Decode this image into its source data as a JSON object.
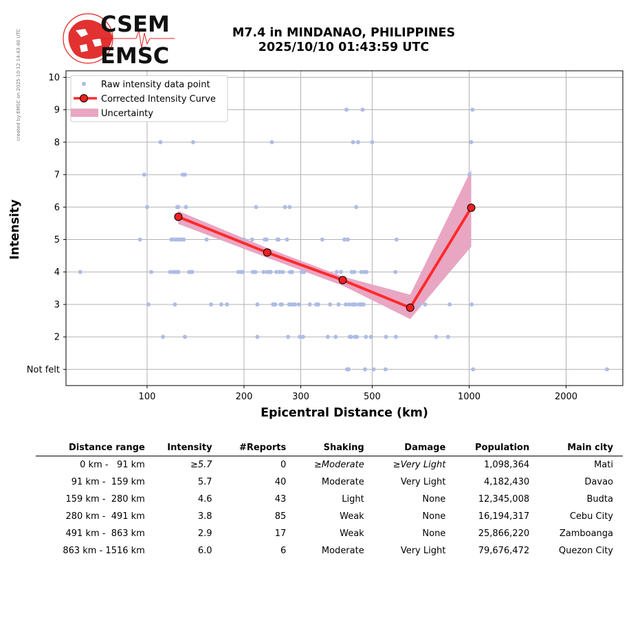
{
  "credit": "created by EMSC on 2025-10-12 14:43:40 UTC",
  "logo": {
    "line1": "CSEM",
    "line2": "EMSC"
  },
  "title": {
    "line1": "M7.4 in MINDANAO, PHILIPPINES",
    "line2": "2025/10/10 01:43:59 UTC"
  },
  "colors": {
    "raw": "#aebbe6",
    "curve": "#ff2a2a",
    "marker": "#ee2020",
    "uncertainty": "#e8a6c3",
    "logo_red": "#e02020"
  },
  "chart_data": {
    "type": "scatter",
    "xlabel": "Epicentral Distance (km)",
    "ylabel": "Intensity",
    "xscale": "log",
    "xlim": [
      56,
      3000
    ],
    "ylim": [
      0.5,
      10.2
    ],
    "xticks": [
      {
        "v": 100,
        "label": "100"
      },
      {
        "v": 200,
        "label": "200"
      },
      {
        "v": 300,
        "label": "300"
      },
      {
        "v": 500,
        "label": "500"
      },
      {
        "v": 1000,
        "label": "1000"
      },
      {
        "v": 2000,
        "label": "2000"
      }
    ],
    "yticks": [
      {
        "v": 1,
        "label": "Not felt"
      },
      {
        "v": 2,
        "label": "2"
      },
      {
        "v": 3,
        "label": "3"
      },
      {
        "v": 4,
        "label": "4"
      },
      {
        "v": 5,
        "label": "5"
      },
      {
        "v": 6,
        "label": "6"
      },
      {
        "v": 7,
        "label": "7"
      },
      {
        "v": 8,
        "label": "8"
      },
      {
        "v": 9,
        "label": "9"
      },
      {
        "v": 10,
        "label": "10"
      }
    ],
    "grid": true,
    "legend_position": "top-left",
    "legend": [
      "Raw intensity data point",
      "Corrected Intensity Curve",
      "Uncertainty"
    ],
    "raw_points": [
      [
        62,
        4
      ],
      [
        95,
        5
      ],
      [
        98,
        7
      ],
      [
        100,
        6
      ],
      [
        101,
        3
      ],
      [
        103,
        4
      ],
      [
        110,
        8
      ],
      [
        112,
        2
      ],
      [
        118,
        4
      ],
      [
        119,
        5
      ],
      [
        120,
        5
      ],
      [
        121,
        4
      ],
      [
        122,
        5
      ],
      [
        122,
        3
      ],
      [
        123,
        4
      ],
      [
        124,
        5
      ],
      [
        124,
        6
      ],
      [
        125,
        6
      ],
      [
        125,
        4
      ],
      [
        126,
        5
      ],
      [
        127,
        5
      ],
      [
        128,
        5
      ],
      [
        129,
        7
      ],
      [
        130,
        5
      ],
      [
        131,
        7
      ],
      [
        131,
        2
      ],
      [
        132,
        6
      ],
      [
        135,
        4
      ],
      [
        137,
        4
      ],
      [
        138,
        4
      ],
      [
        139,
        8
      ],
      [
        153,
        5
      ],
      [
        158,
        3
      ],
      [
        170,
        3
      ],
      [
        177,
        3
      ],
      [
        192,
        4
      ],
      [
        196,
        4
      ],
      [
        198,
        4
      ],
      [
        200,
        5
      ],
      [
        212,
        5
      ],
      [
        213,
        4
      ],
      [
        217,
        4
      ],
      [
        218,
        6
      ],
      [
        220,
        3
      ],
      [
        220,
        2
      ],
      [
        230,
        4
      ],
      [
        232,
        5
      ],
      [
        235,
        5
      ],
      [
        236,
        4
      ],
      [
        240,
        4
      ],
      [
        242,
        4
      ],
      [
        244,
        8
      ],
      [
        246,
        3
      ],
      [
        248,
        3
      ],
      [
        250,
        3
      ],
      [
        252,
        4
      ],
      [
        254,
        5
      ],
      [
        256,
        5
      ],
      [
        258,
        4
      ],
      [
        260,
        3
      ],
      [
        262,
        3
      ],
      [
        264,
        4
      ],
      [
        268,
        6
      ],
      [
        272,
        5
      ],
      [
        274,
        2
      ],
      [
        276,
        3
      ],
      [
        277,
        6
      ],
      [
        278,
        4
      ],
      [
        280,
        3
      ],
      [
        282,
        4
      ],
      [
        285,
        3
      ],
      [
        288,
        3
      ],
      [
        296,
        3
      ],
      [
        298,
        2
      ],
      [
        302,
        4
      ],
      [
        305,
        2
      ],
      [
        307,
        4
      ],
      [
        320,
        3
      ],
      [
        335,
        3
      ],
      [
        340,
        3
      ],
      [
        350,
        5
      ],
      [
        364,
        2
      ],
      [
        370,
        3
      ],
      [
        385,
        2
      ],
      [
        388,
        4
      ],
      [
        393,
        3
      ],
      [
        400,
        4
      ],
      [
        410,
        5
      ],
      [
        414,
        3
      ],
      [
        416,
        9
      ],
      [
        418,
        1
      ],
      [
        420,
        5
      ],
      [
        422,
        1
      ],
      [
        424,
        3
      ],
      [
        426,
        2
      ],
      [
        430,
        2
      ],
      [
        432,
        4
      ],
      [
        434,
        3
      ],
      [
        436,
        8
      ],
      [
        438,
        3
      ],
      [
        440,
        4
      ],
      [
        442,
        2
      ],
      [
        444,
        3
      ],
      [
        446,
        6
      ],
      [
        448,
        2
      ],
      [
        452,
        8
      ],
      [
        455,
        3
      ],
      [
        460,
        3
      ],
      [
        462,
        4
      ],
      [
        465,
        3
      ],
      [
        467,
        9
      ],
      [
        470,
        3
      ],
      [
        472,
        4
      ],
      [
        475,
        1
      ],
      [
        478,
        2
      ],
      [
        480,
        4
      ],
      [
        496,
        2
      ],
      [
        500,
        8
      ],
      [
        505,
        1
      ],
      [
        550,
        1
      ],
      [
        552,
        2
      ],
      [
        590,
        4
      ],
      [
        592,
        2
      ],
      [
        595,
        5
      ],
      [
        700,
        3
      ],
      [
        730,
        3
      ],
      [
        790,
        2
      ],
      [
        860,
        2
      ],
      [
        870,
        3
      ],
      [
        1002,
        7
      ],
      [
        1015,
        8
      ],
      [
        1018,
        3
      ],
      [
        1024,
        9
      ],
      [
        1028,
        1
      ],
      [
        2680,
        1
      ]
    ],
    "series": [
      {
        "name": "Corrected Intensity Curve",
        "points": [
          [
            125,
            5.7
          ],
          [
            236,
            4.6
          ],
          [
            405,
            3.75
          ],
          [
            656,
            2.9
          ],
          [
            1015,
            5.98
          ]
        ]
      }
    ],
    "uncertainty": {
      "name": "Uncertainty",
      "upper": [
        [
          125,
          5.88
        ],
        [
          236,
          4.74
        ],
        [
          405,
          3.86
        ],
        [
          656,
          3.3
        ],
        [
          1015,
          7.15
        ]
      ],
      "lower": [
        [
          125,
          5.48
        ],
        [
          236,
          4.44
        ],
        [
          405,
          3.58
        ],
        [
          656,
          2.55
        ],
        [
          1015,
          4.78
        ]
      ]
    }
  },
  "table": {
    "headers": [
      "Distance range",
      "Intensity",
      "#Reports",
      "Shaking",
      "Damage",
      "Population",
      "Main city"
    ],
    "rows": [
      {
        "range": "0 km -   91 km",
        "intensity": "≥5.7",
        "reports": "0",
        "shaking": "≥Moderate",
        "damage": "≥Very Light",
        "population": "1,098,364",
        "city": "Mati",
        "italic": true
      },
      {
        "range": "91 km -  159 km",
        "intensity": "5.7",
        "reports": "40",
        "shaking": "Moderate",
        "damage": "Very Light",
        "population": "4,182,430",
        "city": "Davao"
      },
      {
        "range": "159 km -  280 km",
        "intensity": "4.6",
        "reports": "43",
        "shaking": "Light",
        "damage": "None",
        "population": "12,345,008",
        "city": "Budta"
      },
      {
        "range": "280 km -  491 km",
        "intensity": "3.8",
        "reports": "85",
        "shaking": "Weak",
        "damage": "None",
        "population": "16,194,317",
        "city": "Cebu City"
      },
      {
        "range": "491 km -  863 km",
        "intensity": "2.9",
        "reports": "17",
        "shaking": "Weak",
        "damage": "None",
        "population": "25,866,220",
        "city": "Zamboanga"
      },
      {
        "range": "863 km - 1516 km",
        "intensity": "6.0",
        "reports": "6",
        "shaking": "Moderate",
        "damage": "Very Light",
        "population": "79,676,472",
        "city": "Quezon City"
      }
    ]
  }
}
